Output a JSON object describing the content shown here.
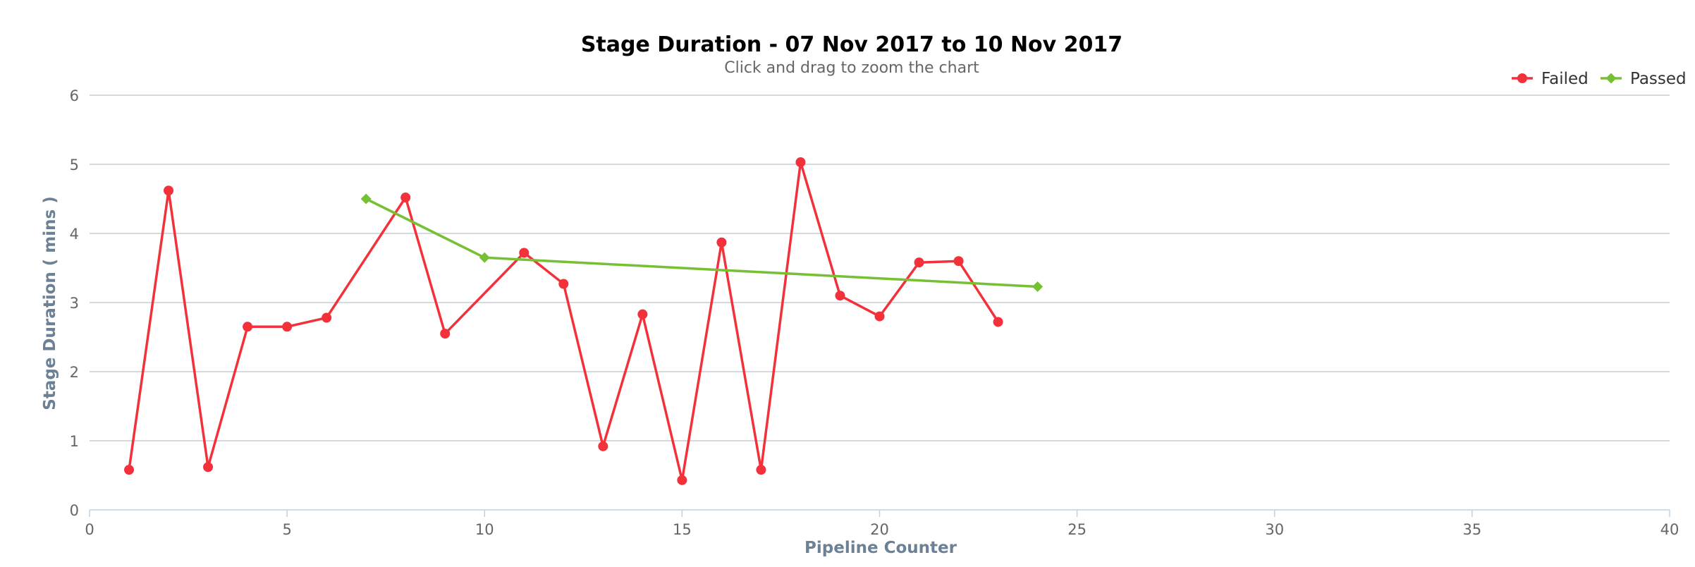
{
  "page": {
    "title": "Stage Duration - 07 Nov 2017 to 10 Nov 2017",
    "subtitle": "Click and drag to zoom the chart"
  },
  "chart_data": {
    "type": "line",
    "title": "Stage Duration - 07 Nov 2017 to 10 Nov 2017",
    "subtitle": "Click and drag to zoom the chart",
    "xlabel": "Pipeline Counter",
    "ylabel": "Stage Duration ( mins )",
    "xlim": [
      0,
      40
    ],
    "ylim": [
      0,
      6
    ],
    "xticks": [
      0,
      5,
      10,
      15,
      20,
      25,
      30,
      35,
      40
    ],
    "yticks": [
      0,
      1,
      2,
      3,
      4,
      5,
      6
    ],
    "grid": true,
    "legend_position": "top-right",
    "series": [
      {
        "name": "Failed",
        "color": "#f2313b",
        "marker": "circle",
        "points": [
          {
            "x": 1,
            "y": 0.58
          },
          {
            "x": 2,
            "y": 4.62
          },
          {
            "x": 3,
            "y": 0.62
          },
          {
            "x": 4,
            "y": 2.65
          },
          {
            "x": 5,
            "y": 2.65
          },
          {
            "x": 6,
            "y": 2.78
          },
          {
            "x": 8,
            "y": 4.52
          },
          {
            "x": 9,
            "y": 2.55
          },
          {
            "x": 11,
            "y": 3.72
          },
          {
            "x": 12,
            "y": 3.27
          },
          {
            "x": 13,
            "y": 0.92
          },
          {
            "x": 14,
            "y": 2.83
          },
          {
            "x": 15,
            "y": 0.43
          },
          {
            "x": 16,
            "y": 3.87
          },
          {
            "x": 17,
            "y": 0.58
          },
          {
            "x": 18,
            "y": 5.03
          },
          {
            "x": 19,
            "y": 3.1
          },
          {
            "x": 20,
            "y": 2.8
          },
          {
            "x": 21,
            "y": 3.58
          },
          {
            "x": 22,
            "y": 3.6
          },
          {
            "x": 23,
            "y": 2.72
          }
        ]
      },
      {
        "name": "Passed",
        "color": "#77c034",
        "marker": "diamond",
        "points": [
          {
            "x": 7,
            "y": 4.5
          },
          {
            "x": 10,
            "y": 3.65
          },
          {
            "x": 24,
            "y": 3.23
          }
        ]
      }
    ]
  }
}
